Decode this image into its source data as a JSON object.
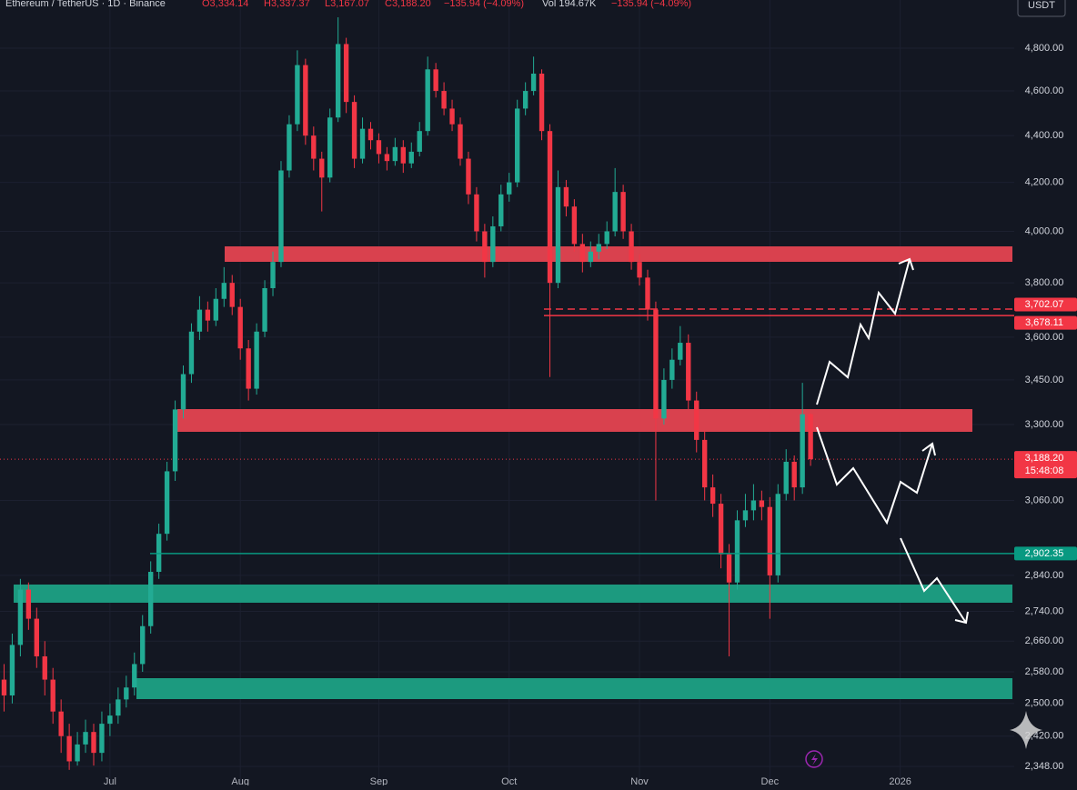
{
  "chart_data": {
    "type": "candlestick",
    "header": {
      "symbol": "Ethereum / TetherUS · 1D · Binance",
      "open": "O3,334.14",
      "high": "H3,337.37",
      "low": "L3,167.07",
      "close": "C3,188.20",
      "change": "−135.94 (−4.09%)",
      "volume": "Vol 194.67K",
      "volume_change": "−135.94 (−4.09%)"
    },
    "currency": "USDT",
    "up_color": "#22ab94",
    "down_color": "#f23645",
    "log_scale": true,
    "ylim": [
      2304,
      5036
    ],
    "yticks": [
      {
        "value": 4800,
        "label": "4,800.00"
      },
      {
        "value": 4600,
        "label": "4,600.00"
      },
      {
        "value": 4400,
        "label": "4,400.00"
      },
      {
        "value": 4200,
        "label": "4,200.00"
      },
      {
        "value": 4000,
        "label": "4,000.00"
      },
      {
        "value": 3800,
        "label": "3,800.00"
      },
      {
        "value": 3600,
        "label": "3,600.00"
      },
      {
        "value": 3450,
        "label": "3,450.00"
      },
      {
        "value": 3300,
        "label": "3,300.00"
      },
      {
        "value": 3060,
        "label": "3,060.00"
      },
      {
        "value": 2840,
        "label": "2,840.00"
      },
      {
        "value": 2740,
        "label": "2,740.00"
      },
      {
        "value": 2660,
        "label": "2,660.00"
      },
      {
        "value": 2580,
        "label": "2,580.00"
      },
      {
        "value": 2500,
        "label": "2,500.00"
      },
      {
        "value": 2420,
        "label": "2,420.00"
      },
      {
        "value": 2348,
        "label": "2,348.00"
      }
    ],
    "xlim": [
      -0.5,
      124
    ],
    "xticks": [
      {
        "value": 13,
        "label": "Jul"
      },
      {
        "value": 29,
        "label": "Aug"
      },
      {
        "value": 46,
        "label": "Sep"
      },
      {
        "value": 62,
        "label": "Oct"
      },
      {
        "value": 78,
        "label": "Nov"
      },
      {
        "value": 94,
        "label": "Dec"
      },
      {
        "value": 110,
        "label": "2026"
      }
    ],
    "values": [
      [
        2560,
        2600,
        2480,
        2520
      ],
      [
        2520,
        2680,
        2500,
        2650
      ],
      [
        2650,
        2830,
        2620,
        2800
      ],
      [
        2800,
        2820,
        2690,
        2720
      ],
      [
        2720,
        2750,
        2590,
        2620
      ],
      [
        2620,
        2660,
        2520,
        2560
      ],
      [
        2560,
        2590,
        2450,
        2480
      ],
      [
        2480,
        2510,
        2380,
        2420
      ],
      [
        2420,
        2450,
        2340,
        2360
      ],
      [
        2360,
        2430,
        2350,
        2400
      ],
      [
        2400,
        2460,
        2380,
        2430
      ],
      [
        2430,
        2450,
        2350,
        2380
      ],
      [
        2380,
        2480,
        2360,
        2450
      ],
      [
        2450,
        2500,
        2420,
        2470
      ],
      [
        2470,
        2540,
        2450,
        2510
      ],
      [
        2510,
        2570,
        2490,
        2540
      ],
      [
        2540,
        2630,
        2520,
        2600
      ],
      [
        2600,
        2730,
        2580,
        2700
      ],
      [
        2700,
        2880,
        2680,
        2850
      ],
      [
        2850,
        2990,
        2830,
        2960
      ],
      [
        2960,
        3180,
        2940,
        3150
      ],
      [
        3150,
        3380,
        3120,
        3350
      ],
      [
        3350,
        3500,
        3320,
        3470
      ],
      [
        3470,
        3650,
        3440,
        3620
      ],
      [
        3620,
        3750,
        3590,
        3700
      ],
      [
        3700,
        3730,
        3620,
        3660
      ],
      [
        3660,
        3780,
        3640,
        3740
      ],
      [
        3740,
        3860,
        3710,
        3800
      ],
      [
        3800,
        3830,
        3680,
        3710
      ],
      [
        3710,
        3740,
        3520,
        3560
      ],
      [
        3560,
        3590,
        3380,
        3420
      ],
      [
        3420,
        3650,
        3400,
        3620
      ],
      [
        3620,
        3810,
        3600,
        3780
      ],
      [
        3780,
        3920,
        3750,
        3880
      ],
      [
        3880,
        4290,
        3860,
        4250
      ],
      [
        4250,
        4490,
        4220,
        4450
      ],
      [
        4450,
        4790,
        4420,
        4720
      ],
      [
        4720,
        4750,
        4360,
        4400
      ],
      [
        4400,
        4440,
        4250,
        4300
      ],
      [
        4300,
        4330,
        4080,
        4220
      ],
      [
        4220,
        4520,
        4200,
        4480
      ],
      [
        4480,
        4950,
        4460,
        4820
      ],
      [
        4820,
        4850,
        4500,
        4550
      ],
      [
        4550,
        4580,
        4260,
        4300
      ],
      [
        4300,
        4480,
        4280,
        4430
      ],
      [
        4430,
        4460,
        4340,
        4380
      ],
      [
        4380,
        4410,
        4280,
        4320
      ],
      [
        4320,
        4350,
        4250,
        4290
      ],
      [
        4290,
        4390,
        4270,
        4350
      ],
      [
        4350,
        4380,
        4240,
        4280
      ],
      [
        4280,
        4370,
        4260,
        4330
      ],
      [
        4330,
        4460,
        4310,
        4420
      ],
      [
        4420,
        4760,
        4400,
        4700
      ],
      [
        4700,
        4730,
        4570,
        4600
      ],
      [
        4600,
        4640,
        4490,
        4520
      ],
      [
        4520,
        4560,
        4420,
        4450
      ],
      [
        4450,
        4480,
        4270,
        4300
      ],
      [
        4300,
        4330,
        4110,
        4150
      ],
      [
        4150,
        4180,
        3960,
        4000
      ],
      [
        4000,
        4030,
        3820,
        3880
      ],
      [
        3880,
        4060,
        3860,
        4020
      ],
      [
        4020,
        4190,
        4000,
        4150
      ],
      [
        4150,
        4240,
        4120,
        4200
      ],
      [
        4200,
        4560,
        4180,
        4520
      ],
      [
        4520,
        4640,
        4490,
        4600
      ],
      [
        4600,
        4760,
        4580,
        4680
      ],
      [
        4680,
        4700,
        4380,
        4420
      ],
      [
        4420,
        4450,
        3460,
        3800
      ],
      [
        3800,
        4250,
        3780,
        4180
      ],
      [
        4180,
        4210,
        4060,
        4100
      ],
      [
        4100,
        4130,
        3920,
        3950
      ],
      [
        3950,
        3990,
        3840,
        3880
      ],
      [
        3880,
        3960,
        3860,
        3920
      ],
      [
        3920,
        3990,
        3890,
        3950
      ],
      [
        3950,
        4040,
        3930,
        4000
      ],
      [
        4000,
        4260,
        3980,
        4160
      ],
      [
        4160,
        4190,
        3970,
        4000
      ],
      [
        4000,
        4030,
        3850,
        3880
      ],
      [
        3880,
        3910,
        3790,
        3820
      ],
      [
        3820,
        3850,
        3660,
        3700
      ],
      [
        3700,
        3730,
        3060,
        3320
      ],
      [
        3320,
        3490,
        3300,
        3450
      ],
      [
        3450,
        3560,
        3420,
        3520
      ],
      [
        3520,
        3640,
        3500,
        3580
      ],
      [
        3580,
        3610,
        3350,
        3380
      ],
      [
        3380,
        3410,
        3210,
        3250
      ],
      [
        3250,
        3280,
        3060,
        3100
      ],
      [
        3100,
        3140,
        3010,
        3050
      ],
      [
        3050,
        3080,
        2860,
        2900
      ],
      [
        2900,
        2930,
        2620,
        2820
      ],
      [
        2820,
        3030,
        2800,
        3000
      ],
      [
        3000,
        3080,
        2980,
        3030
      ],
      [
        3030,
        3110,
        3000,
        3060
      ],
      [
        3060,
        3090,
        3000,
        3040
      ],
      [
        3040,
        3070,
        2720,
        2840
      ],
      [
        2840,
        3110,
        2820,
        3080
      ],
      [
        3080,
        3220,
        3060,
        3180
      ],
      [
        3180,
        3200,
        3060,
        3100
      ],
      [
        3100,
        3440,
        3080,
        3334.14
      ],
      [
        3334.14,
        3337.37,
        3167.07,
        3188.2
      ]
    ],
    "price_lines": [
      {
        "value": 3702.07,
        "label": "3,702.07",
        "color": "#f23645",
        "style": "dashed"
      },
      {
        "value": 3678.11,
        "label": "3,678.11",
        "color": "#f23645",
        "style": "solid"
      },
      {
        "value": 2902.35,
        "label": "2,902.35",
        "color": "#089981",
        "style": "solid"
      }
    ],
    "last_price": {
      "value": 3188.2,
      "label": "3,188.20",
      "countdown": "15:48:08",
      "color": "#f23645"
    }
  }
}
